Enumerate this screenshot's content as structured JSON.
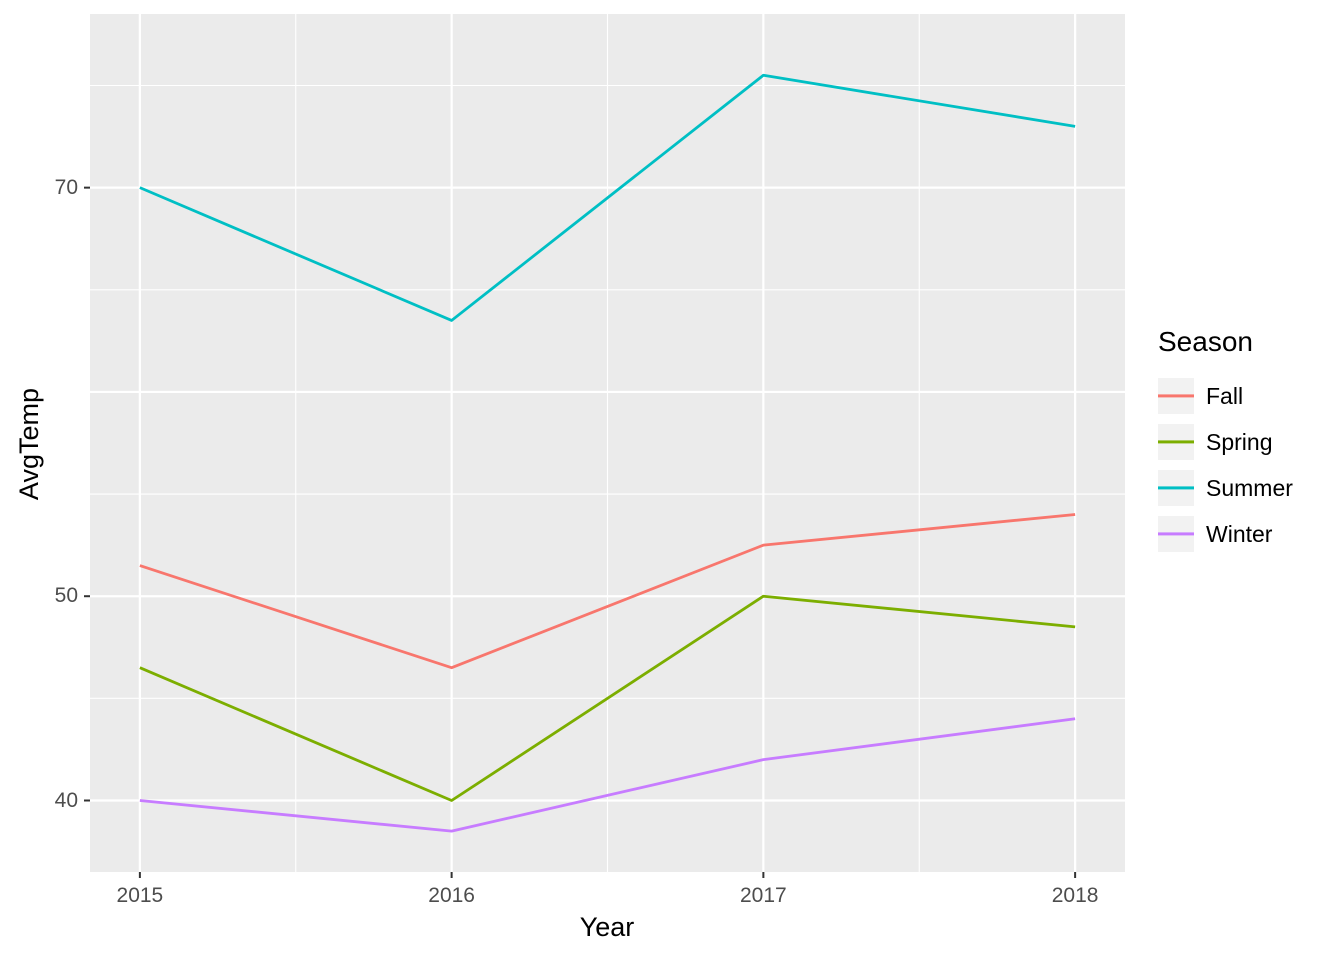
{
  "chart_data": {
    "type": "line",
    "title": "",
    "xlabel": "Year",
    "ylabel": "AvgTemp",
    "x": [
      2015,
      2016,
      2017,
      2018
    ],
    "series": [
      {
        "name": "Fall",
        "color": "#F8766D",
        "values": [
          51.5,
          46.5,
          52.5,
          54.0
        ]
      },
      {
        "name": "Spring",
        "color": "#7CAE00",
        "values": [
          46.5,
          40.0,
          50.0,
          48.5
        ]
      },
      {
        "name": "Summer",
        "color": "#00BFC4",
        "values": [
          70.0,
          63.5,
          75.5,
          73.0
        ]
      },
      {
        "name": "Winter",
        "color": "#C77CFF",
        "values": [
          40.0,
          38.5,
          42.0,
          44.0
        ]
      }
    ],
    "legend": {
      "title": "Season",
      "position": "right",
      "entries": [
        "Fall",
        "Spring",
        "Summer",
        "Winter"
      ]
    },
    "x_ticks": [
      {
        "value": 2015,
        "label": "2015"
      },
      {
        "value": 2016,
        "label": "2016"
      },
      {
        "value": 2017,
        "label": "2017"
      },
      {
        "value": 2018,
        "label": "2018"
      }
    ],
    "y_ticks": [
      {
        "value": 70,
        "label": "70"
      },
      {
        "value": 50,
        "label": "50"
      },
      {
        "value": 40,
        "label": "40"
      }
    ],
    "x_range": [
      2014.84,
      2018.16
    ],
    "y_range": [
      36.5,
      78.5
    ],
    "grid": {
      "on": true,
      "major_y": [
        40,
        50,
        60,
        70
      ],
      "minor_y": [
        45,
        55,
        65,
        75
      ],
      "major_x": [
        2015,
        2016,
        2017,
        2018
      ],
      "minor_x": [
        2015.5,
        2016.5,
        2017.5
      ]
    },
    "style": {
      "panel_bg": "#EBEBEB",
      "grid_color": "#FFFFFF",
      "tick_color": "#333333",
      "tick_label_color": "#4D4D4D",
      "legend_key_bg": "#F2F2F2"
    }
  }
}
